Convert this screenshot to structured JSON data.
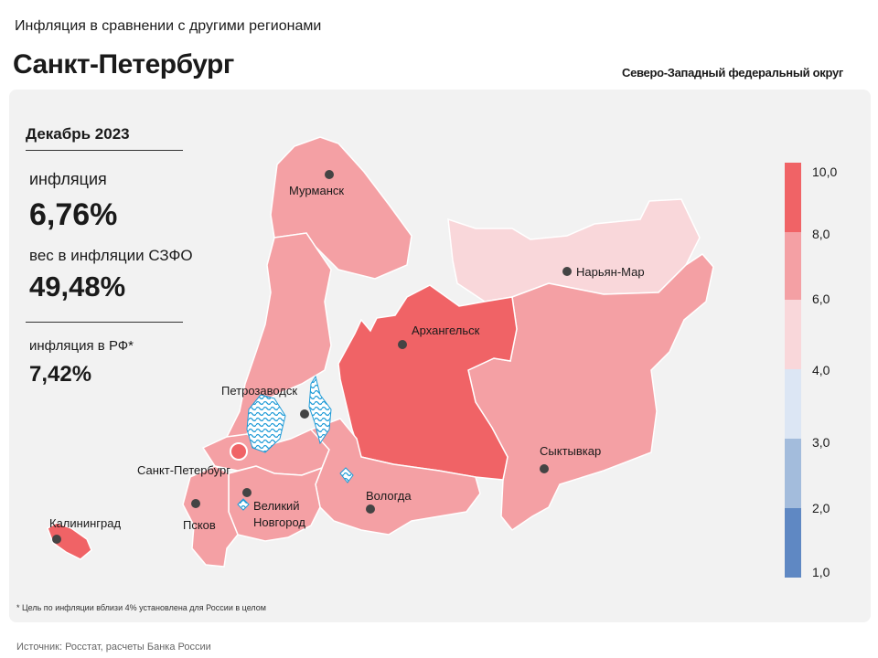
{
  "header": {
    "subtitle": "Инфляция в сравнении с другими регионами",
    "title": "Санкт-Петербург",
    "district": "Северо-Западный федеральный округ"
  },
  "stats": {
    "period": "Декабрь 2023",
    "inflation_label": "инфляция",
    "inflation_value": "6,76%",
    "weight_label": "вес в инфляции  СЗФО",
    "weight_value": "49,48%",
    "rf_label": "инфляция  в РФ*",
    "rf_value": "7,42%"
  },
  "map": {
    "cities": [
      "Мурманск",
      "Нарьян-Мар",
      "Архангельск",
      "Петрозаводск",
      "Санкт-Петербург",
      "Сыктывкар",
      "Вологда",
      "Великий",
      "Новгород",
      "Псков",
      "Калининград"
    ],
    "colors": {
      "band_8_10": "#f06366",
      "band_6_8": "#f4a0a4",
      "band_4_6": "#f9d7da",
      "band_3_4": "#dce6f4",
      "band_2_3": "#a3bcdc",
      "band_1_2": "#5f88c3",
      "water": "#1f9bd7"
    },
    "legend": [
      "10,0",
      "8,0",
      "6,0",
      "4,0",
      "3,0",
      "2,0",
      "1,0"
    ]
  },
  "footnote": "* Цель по инфляции вблизи 4% установлена для России в целом",
  "source": "Источник: Росстат, расчеты Банка России"
}
